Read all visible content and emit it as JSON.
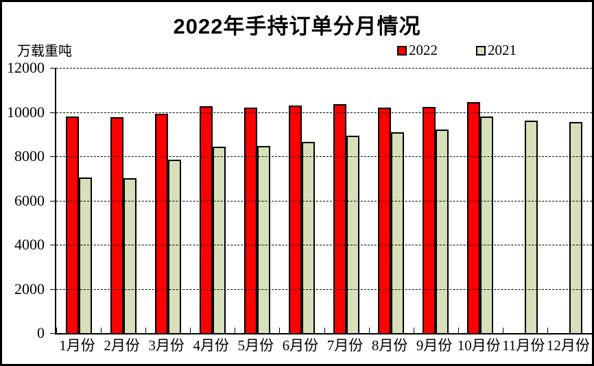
{
  "window": {
    "background_color": "#FFFFFF",
    "border_color": "#000000"
  },
  "chart_data": {
    "type": "bar",
    "title": "2022年手持订单分月情况",
    "unit_label": "万载重吨",
    "xlabel": "",
    "ylabel": "万载重吨",
    "categories": [
      "1月份",
      "2月份",
      "3月份",
      "4月份",
      "5月份",
      "6月份",
      "7月份",
      "8月份",
      "9月份",
      "10月份",
      "11月份",
      "12月份"
    ],
    "series": [
      {
        "name": "2022",
        "color": "#FF0000",
        "values": [
          9800,
          9770,
          9910,
          10250,
          10200,
          10280,
          10350,
          10200,
          10240,
          10450,
          null,
          null
        ]
      },
      {
        "name": "2021",
        "color": "#D6E0BA",
        "values": [
          7040,
          7020,
          7830,
          8420,
          8480,
          8650,
          8920,
          9100,
          9210,
          9800,
          9620,
          9560
        ]
      }
    ],
    "ylim": [
      0,
      12000
    ],
    "ytick_interval": 2000,
    "yticks": [
      12000,
      10000,
      8000,
      6000,
      4000,
      2000,
      0
    ],
    "grid": "horizontal-dashed",
    "legend_position": "top-right",
    "bar_border_color": "#000000"
  }
}
